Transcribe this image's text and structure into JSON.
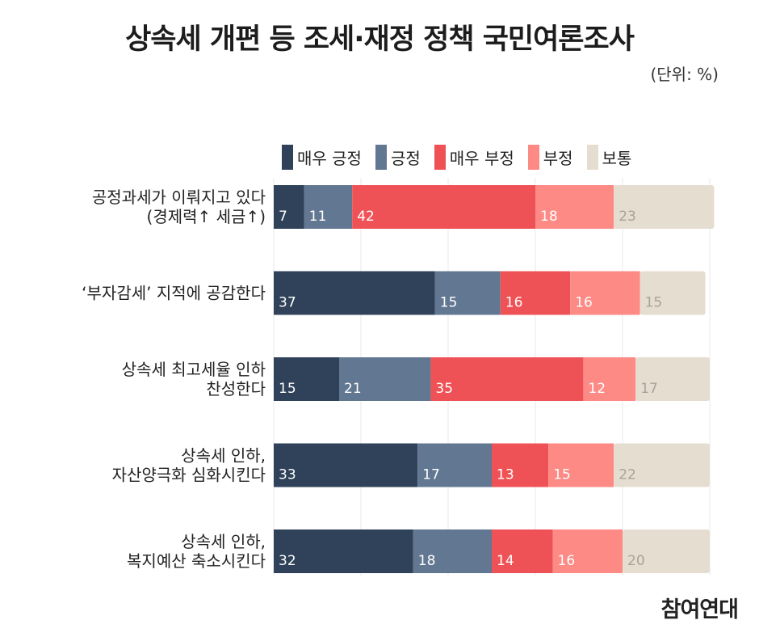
{
  "title": "상속세 개편 등 조세·재정 정책 국민여론조사",
  "unit": "(단위: %)",
  "brand": "참여연대",
  "colors": {
    "very_positive": "#2f425a",
    "positive": "#627791",
    "very_negative": "#ef5256",
    "negative": "#fd8a85",
    "neutral": "#e6ddd1"
  },
  "chart_data": {
    "type": "bar",
    "orientation": "horizontal",
    "stacked": true,
    "title": "상속세 개편 등 조세·재정 정책 국민여론조사",
    "unit": "(단위: %)",
    "legend_position": "top",
    "categories": [
      [
        "공정과세가 이뤄지고 있다",
        "(경제력↑ 세금↑)"
      ],
      [
        "‘부자감세’ 지적에 공감한다"
      ],
      [
        "상속세 최고세율 인하",
        "찬성한다"
      ],
      [
        "상속세 인하,",
        "자산양극화 심화시킨다"
      ],
      [
        "상속세 인하,",
        "복지예산 축소시킨다"
      ]
    ],
    "series": [
      {
        "name": "매우 긍정",
        "color": "#2f425a",
        "label_color": "#ffffff",
        "values": [
          7,
          37,
          15,
          33,
          32
        ]
      },
      {
        "name": "긍정",
        "color": "#627791",
        "label_color": "#ffffff",
        "values": [
          11,
          15,
          21,
          17,
          18
        ]
      },
      {
        "name": "매우 부정",
        "color": "#ef5256",
        "label_color": "#ffffff",
        "values": [
          42,
          16,
          35,
          13,
          14
        ]
      },
      {
        "name": "부정",
        "color": "#fd8a85",
        "label_color": "#ffffff",
        "values": [
          18,
          16,
          12,
          15,
          16
        ]
      },
      {
        "name": "보통",
        "color": "#e6ddd1",
        "label_color": "#a9a29a",
        "values": [
          23,
          15,
          17,
          22,
          20
        ]
      }
    ]
  }
}
